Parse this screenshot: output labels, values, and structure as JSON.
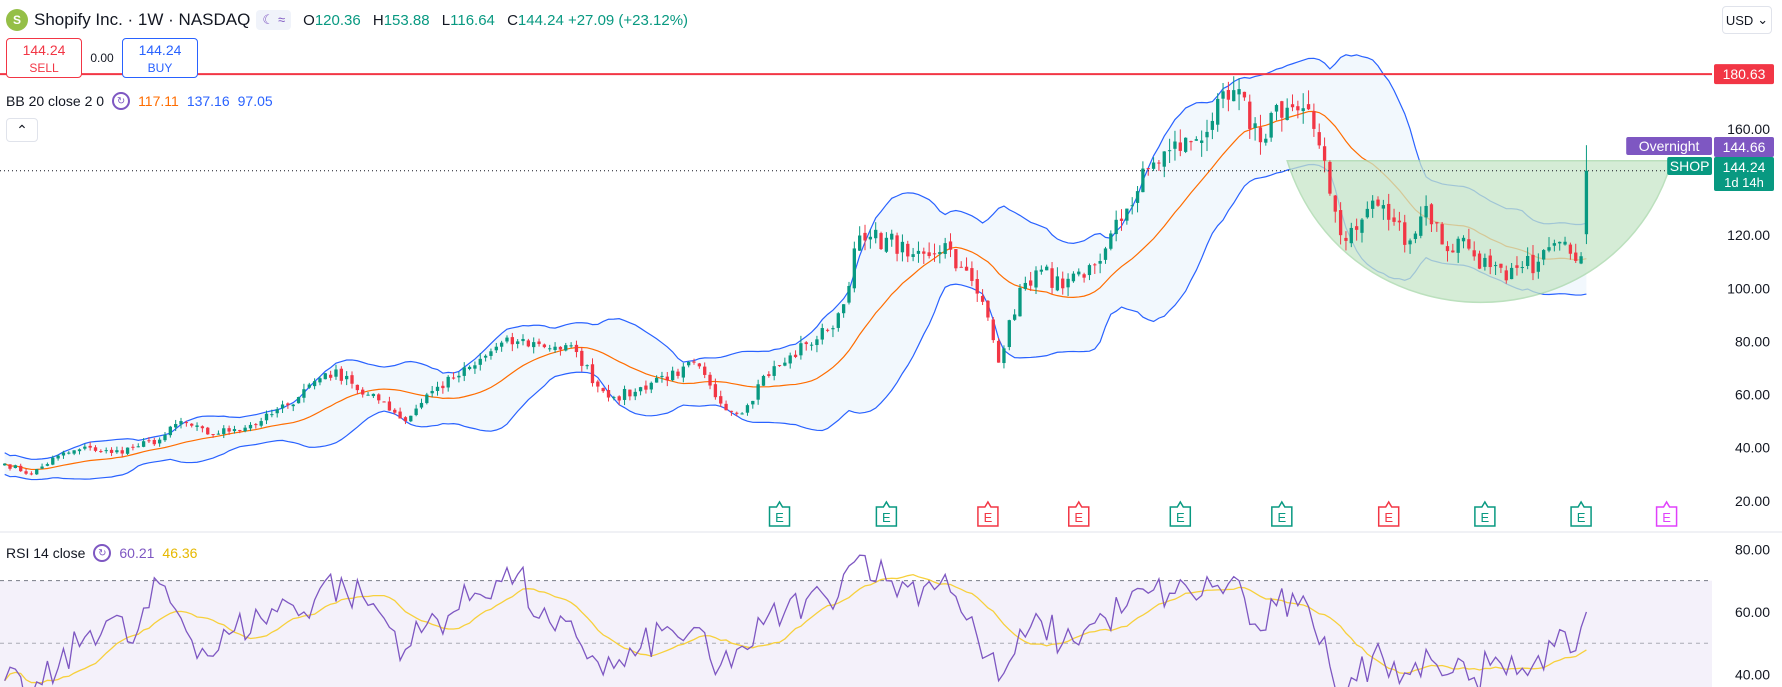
{
  "header": {
    "logo_text": "S",
    "symbol_line": "Shopify Inc. · 1W · NASDAQ",
    "pill_icons": [
      "moon-icon",
      "wave-icon"
    ],
    "ohlc": [
      {
        "k": "O",
        "v": "120.36"
      },
      {
        "k": "H",
        "v": "153.88"
      },
      {
        "k": "L",
        "v": "116.64"
      },
      {
        "k": "C",
        "v": "144.24 +27.09 (+23.12%)"
      }
    ]
  },
  "trade": {
    "sell_price": "144.24",
    "sell_label": "SELL",
    "spread": "0.00",
    "buy_price": "144.24",
    "buy_label": "BUY"
  },
  "bb_legend": {
    "name": "BB 20 close 2 0",
    "basis": "117.11",
    "upper": "137.16",
    "lower": "97.05"
  },
  "rsi_legend": {
    "name": "RSI 14 close",
    "rsi": "60.21",
    "ma": "46.36"
  },
  "currency": "USD",
  "colors": {
    "up": "#089981",
    "down": "#f23645",
    "basis": "#ff6d00",
    "band": "#2962ff",
    "band_fill": "#f2f8fd",
    "resistance": "#f23645",
    "overnight": "#7e57c2",
    "rsi": "#7e57c2",
    "rsi_ma": "#f7d03c",
    "cup_fill": "#c8e6c9",
    "earnings_up": "#089981",
    "earnings_down": "#f23645",
    "earnings_next": "#e040fb"
  },
  "chart_data": [
    {
      "type": "candlestick",
      "title": "Shopify Inc. · 1W · NASDAQ",
      "ylim": [
        12,
        198
      ],
      "y_ticks": [
        "20.00",
        "40.00",
        "60.00",
        "80.00",
        "100.00",
        "120.00",
        "160.00"
      ],
      "price_labels": [
        {
          "name": "",
          "text": "180.63",
          "value": 180.63,
          "color": "#f23645"
        },
        {
          "name": "Overnight",
          "text": "144.66",
          "value": 144.66,
          "color": "#7e57c2"
        },
        {
          "name": "SHOP",
          "text": "144.24",
          "sub": "1d 14h",
          "value": 144.24,
          "color": "#089981"
        }
      ],
      "resistance_level": 180.63,
      "last_price_line": 144.24,
      "close_anchors": [
        [
          0,
          34
        ],
        [
          5,
          30
        ],
        [
          10,
          37
        ],
        [
          16,
          40
        ],
        [
          20,
          38
        ],
        [
          24,
          40
        ],
        [
          29,
          43
        ],
        [
          33,
          50
        ],
        [
          38,
          45
        ],
        [
          43,
          47
        ],
        [
          48,
          50
        ],
        [
          53,
          56
        ],
        [
          56,
          62
        ],
        [
          60,
          68
        ],
        [
          64,
          67
        ],
        [
          67,
          60
        ],
        [
          71,
          57
        ],
        [
          75,
          50
        ],
        [
          79,
          60
        ],
        [
          84,
          66
        ],
        [
          88,
          71
        ],
        [
          92,
          78
        ],
        [
          96,
          80
        ],
        [
          100,
          79
        ],
        [
          103,
          78
        ],
        [
          107,
          76
        ],
        [
          111,
          63
        ],
        [
          114,
          59
        ],
        [
          118,
          61
        ],
        [
          123,
          67
        ],
        [
          126,
          67
        ],
        [
          129,
          72
        ],
        [
          133,
          59
        ],
        [
          137,
          53
        ],
        [
          139,
          56
        ],
        [
          142,
          67
        ],
        [
          146,
          72
        ],
        [
          150,
          79
        ],
        [
          154,
          84
        ],
        [
          157,
          94
        ],
        [
          159,
          115
        ],
        [
          161,
          118
        ],
        [
          165,
          119
        ],
        [
          169,
          112
        ],
        [
          172,
          113
        ],
        [
          176,
          117
        ],
        [
          179,
          108
        ],
        [
          182,
          98
        ],
        [
          184,
          89
        ],
        [
          186,
          72
        ],
        [
          188,
          88
        ],
        [
          191,
          102
        ],
        [
          194,
          107
        ],
        [
          198,
          100
        ],
        [
          202,
          104
        ],
        [
          206,
          115
        ],
        [
          210,
          130
        ],
        [
          214,
          145
        ],
        [
          218,
          152
        ],
        [
          222,
          155
        ],
        [
          226,
          163
        ],
        [
          229,
          171
        ],
        [
          231,
          175
        ],
        [
          233,
          160
        ],
        [
          235,
          155
        ],
        [
          238,
          169
        ],
        [
          242,
          167
        ],
        [
          245,
          160
        ],
        [
          247,
          148
        ],
        [
          250,
          120
        ],
        [
          253,
          122
        ],
        [
          256,
          133
        ],
        [
          260,
          125
        ],
        [
          263,
          118
        ],
        [
          266,
          131
        ],
        [
          270,
          114
        ],
        [
          273,
          119
        ],
        [
          275,
          112
        ],
        [
          278,
          108
        ],
        [
          281,
          103
        ],
        [
          284,
          108
        ],
        [
          287,
          110
        ],
        [
          290,
          117
        ],
        [
          293,
          113
        ],
        [
          296,
          116
        ]
      ],
      "rsi_ylim": [
        36,
        83
      ],
      "rsi_ticks": [
        "80.00",
        "60.00",
        "40.00"
      ],
      "rsi_levels": [
        70,
        30
      ],
      "rsi_anchors": [
        [
          0,
          38
        ],
        [
          5,
          33
        ],
        [
          10,
          42
        ],
        [
          16,
          54
        ],
        [
          20,
          58
        ],
        [
          24,
          50
        ],
        [
          29,
          69
        ],
        [
          33,
          58
        ],
        [
          38,
          46
        ],
        [
          43,
          54
        ],
        [
          48,
          58
        ],
        [
          53,
          63
        ],
        [
          56,
          60
        ],
        [
          60,
          70
        ],
        [
          64,
          66
        ],
        [
          67,
          65
        ],
        [
          71,
          58
        ],
        [
          75,
          48
        ],
        [
          79,
          56
        ],
        [
          84,
          60
        ],
        [
          88,
          66
        ],
        [
          92,
          70
        ],
        [
          96,
          72
        ],
        [
          100,
          58
        ],
        [
          103,
          54
        ],
        [
          107,
          52
        ],
        [
          111,
          44
        ],
        [
          114,
          42
        ],
        [
          118,
          46
        ],
        [
          123,
          54
        ],
        [
          126,
          52
        ],
        [
          129,
          55
        ],
        [
          133,
          40
        ],
        [
          137,
          48
        ],
        [
          139,
          48
        ],
        [
          142,
          56
        ],
        [
          146,
          60
        ],
        [
          150,
          64
        ],
        [
          154,
          64
        ],
        [
          157,
          72
        ],
        [
          159,
          76
        ],
        [
          161,
          78
        ],
        [
          165,
          70
        ],
        [
          169,
          68
        ],
        [
          172,
          68
        ],
        [
          176,
          72
        ],
        [
          179,
          60
        ],
        [
          182,
          52
        ],
        [
          184,
          46
        ],
        [
          186,
          38
        ],
        [
          188,
          44
        ],
        [
          191,
          52
        ],
        [
          194,
          57
        ],
        [
          198,
          50
        ],
        [
          202,
          54
        ],
        [
          206,
          58
        ],
        [
          210,
          62
        ],
        [
          214,
          66
        ],
        [
          218,
          66
        ],
        [
          222,
          66
        ],
        [
          226,
          68
        ],
        [
          229,
          69
        ],
        [
          231,
          70
        ],
        [
          233,
          56
        ],
        [
          235,
          54
        ],
        [
          238,
          62
        ],
        [
          242,
          62
        ],
        [
          245,
          55
        ],
        [
          247,
          52
        ],
        [
          250,
          34
        ],
        [
          253,
          38
        ],
        [
          256,
          46
        ],
        [
          260,
          44
        ],
        [
          263,
          40
        ],
        [
          266,
          48
        ],
        [
          270,
          40
        ],
        [
          273,
          44
        ],
        [
          275,
          39
        ],
        [
          278,
          43
        ],
        [
          281,
          40
        ],
        [
          284,
          42
        ],
        [
          287,
          46
        ],
        [
          290,
          49
        ],
        [
          293,
          47
        ],
        [
          296,
          60
        ]
      ],
      "earnings_markers": [
        {
          "bar": 145,
          "sentiment": "up"
        },
        {
          "bar": 165,
          "sentiment": "up"
        },
        {
          "bar": 184,
          "sentiment": "down"
        },
        {
          "bar": 201,
          "sentiment": "down"
        },
        {
          "bar": 220,
          "sentiment": "up"
        },
        {
          "bar": 239,
          "sentiment": "up"
        },
        {
          "bar": 259,
          "sentiment": "down"
        },
        {
          "bar": 277,
          "sentiment": "up"
        },
        {
          "bar": 295,
          "sentiment": "up"
        },
        {
          "bar": 311,
          "sentiment": "next"
        }
      ],
      "earnings_glyph": "E",
      "cup_pattern": {
        "start_bar": 240,
        "bottom_bar": 277,
        "end_bar": 312,
        "top_value": 148,
        "bottom_value": 92
      }
    }
  ]
}
